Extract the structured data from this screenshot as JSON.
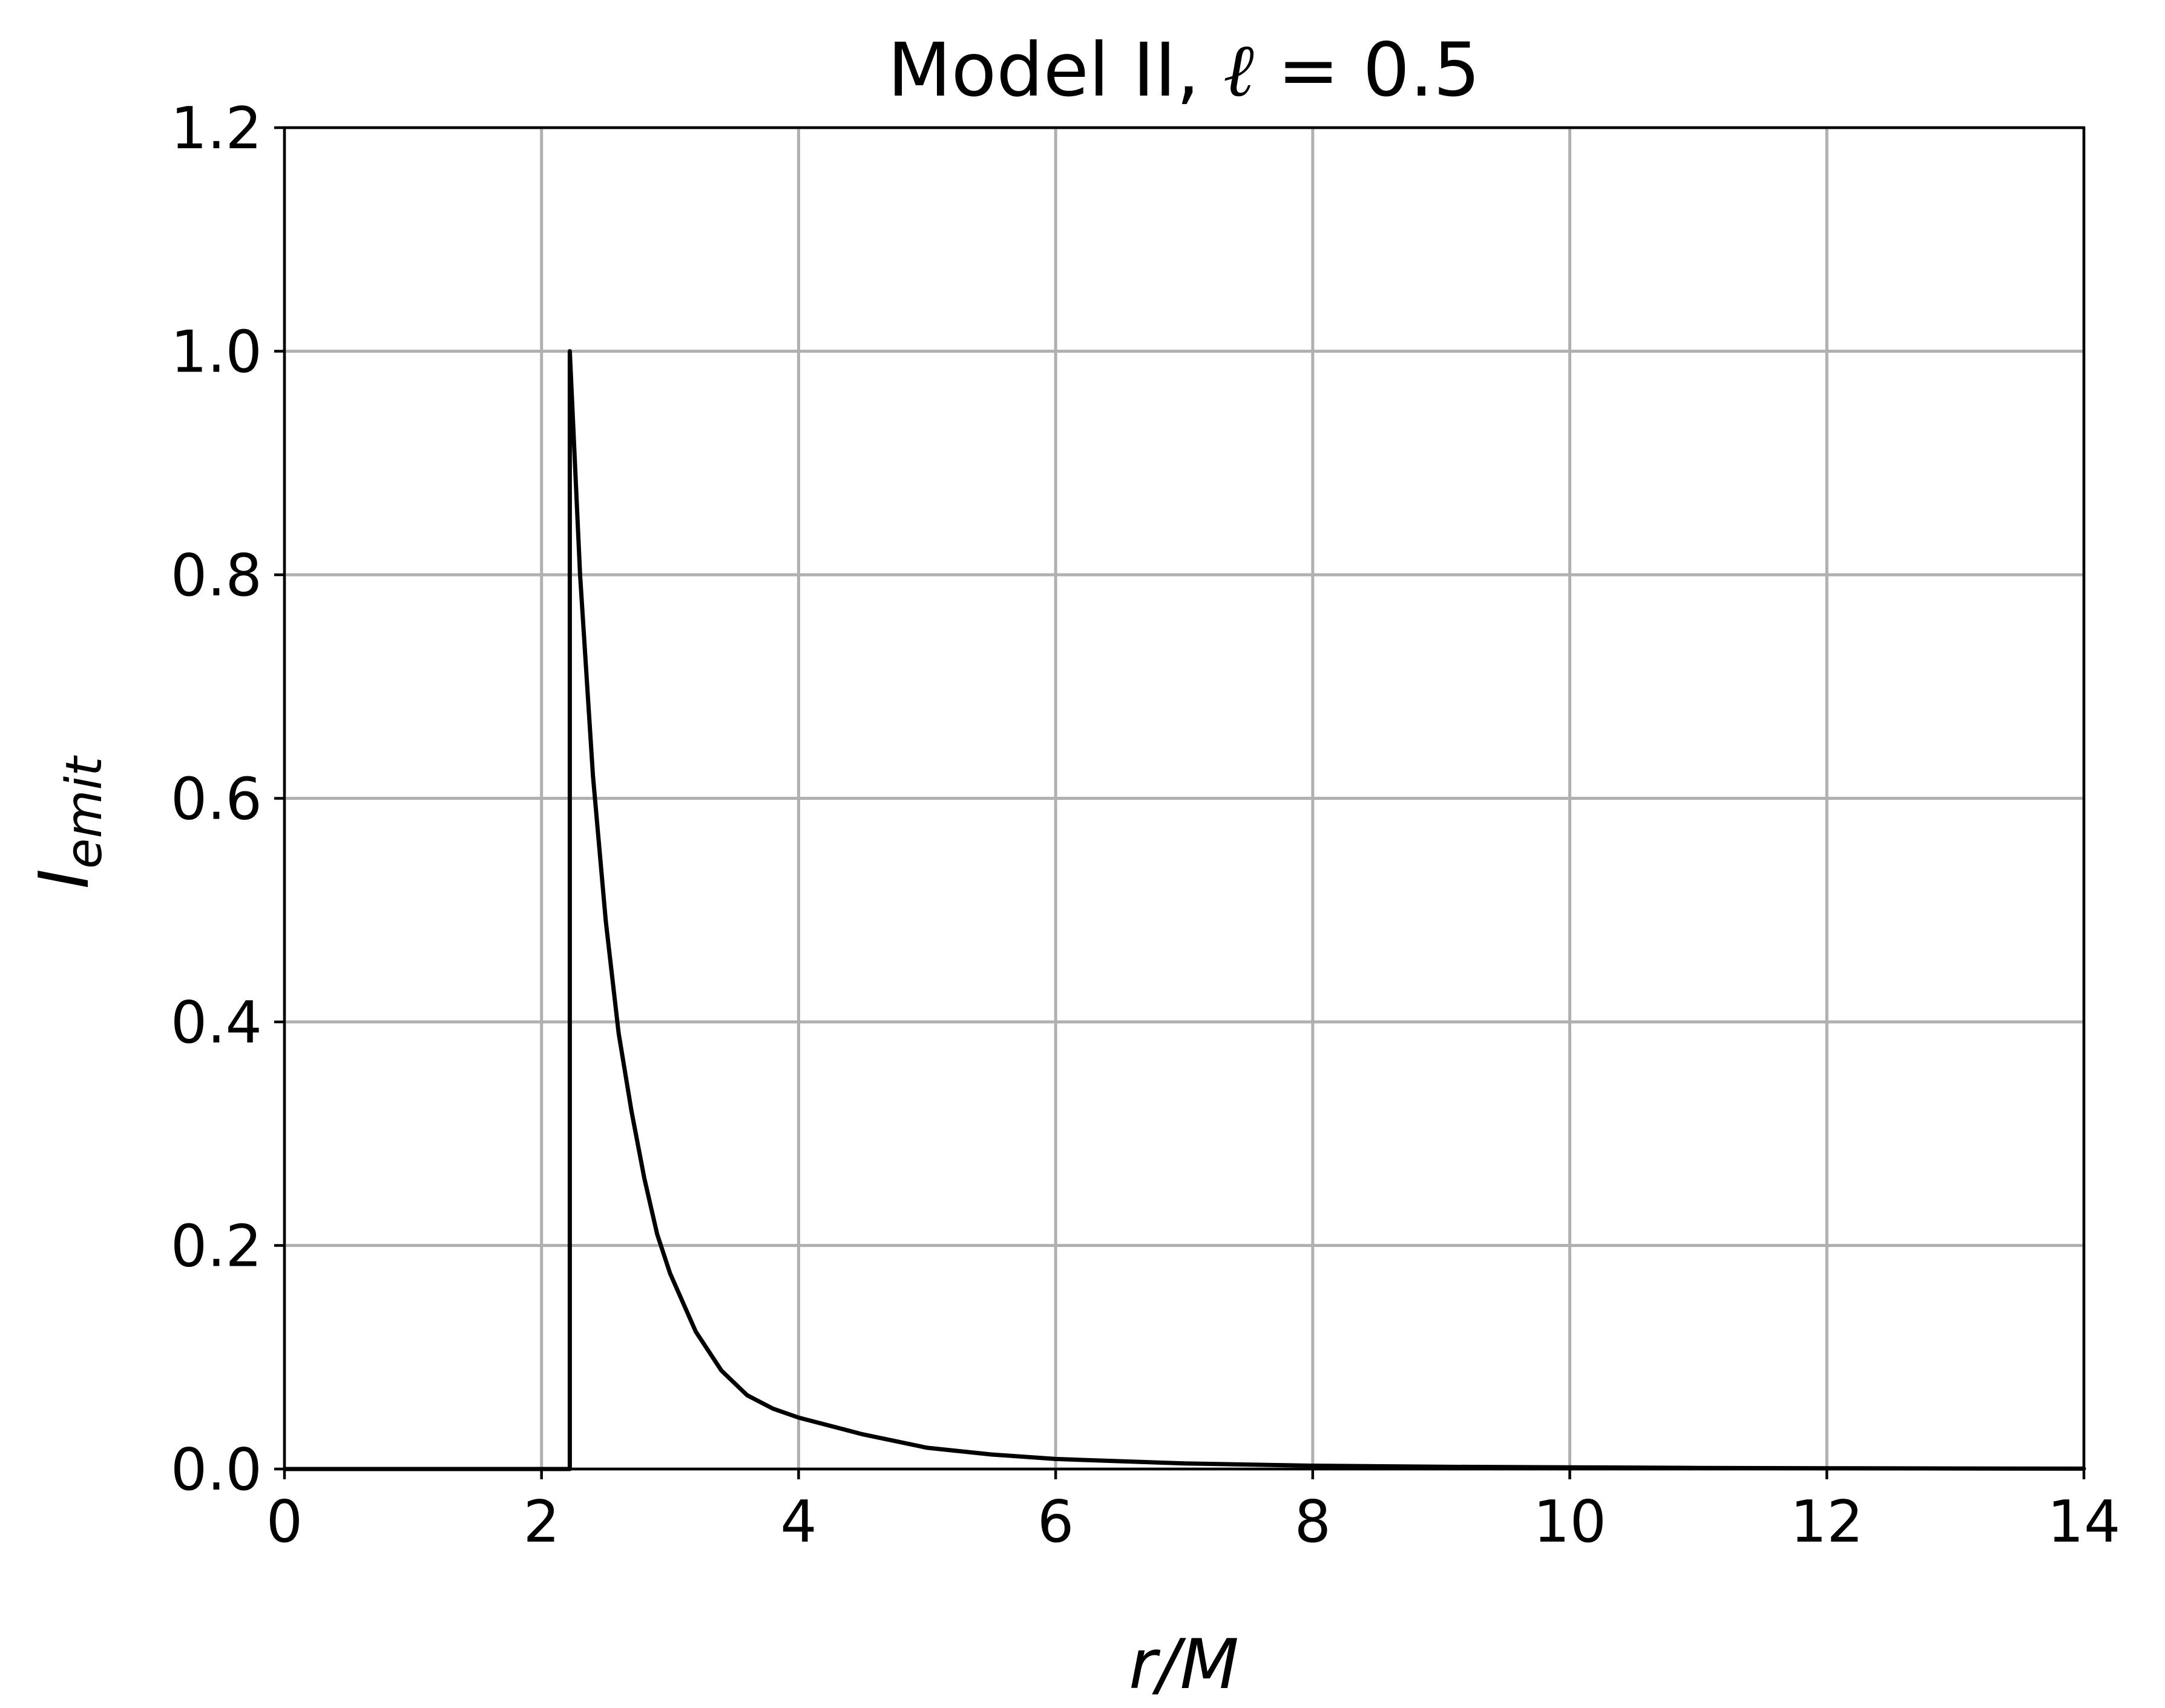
{
  "chart_data": {
    "type": "line",
    "title": {
      "prefix": "Model II, ",
      "symbol": "ℓ",
      "suffix": " = 0.5"
    },
    "xlabel": "r/M",
    "ylabel": {
      "base": "I",
      "subscript": "emit"
    },
    "xlim": [
      0,
      14
    ],
    "ylim": [
      0,
      1.2
    ],
    "xticks": [
      0,
      2,
      4,
      6,
      8,
      10,
      12,
      14
    ],
    "yticks": [
      0.0,
      0.2,
      0.4,
      0.6,
      0.8,
      1.0,
      1.2
    ],
    "xtick_labels": [
      "0",
      "2",
      "4",
      "6",
      "8",
      "10",
      "12",
      "14"
    ],
    "ytick_labels": [
      "0.0",
      "0.2",
      "0.4",
      "0.6",
      "0.8",
      "1.0",
      "1.2"
    ],
    "grid": true,
    "legend": "none",
    "series": [
      {
        "color": "#000000",
        "x": [
          0,
          2.22,
          2.22,
          2.3,
          2.4,
          2.5,
          2.6,
          2.7,
          2.8,
          2.9,
          3.0,
          3.2,
          3.4,
          3.6,
          3.8,
          4.0,
          4.5,
          5.0,
          5.5,
          6.0,
          7.0,
          8.0,
          9.0,
          10.0,
          11.0,
          12.0,
          13.0,
          14.0
        ],
        "y": [
          0,
          0,
          1.0,
          0.8,
          0.62,
          0.49,
          0.39,
          0.32,
          0.26,
          0.21,
          0.175,
          0.123,
          0.088,
          0.066,
          0.054,
          0.046,
          0.031,
          0.019,
          0.013,
          0.009,
          0.005,
          0.003,
          0.002,
          0.0015,
          0.001,
          0.0007,
          0.0005,
          0.0003
        ]
      }
    ]
  }
}
